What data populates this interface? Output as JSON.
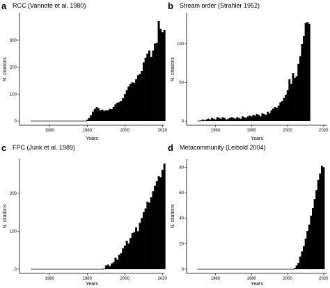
{
  "chart_data": [
    {
      "type": "bar",
      "panel_label": "a",
      "title": "RCC (Vannote et al. 1980)",
      "xlabel": "Years",
      "ylabel": "N. citations",
      "xlim": [
        1944,
        2021
      ],
      "ylim": [
        0,
        390
      ],
      "xticks": [
        1960,
        1980,
        2000,
        2020
      ],
      "yticks": [
        0,
        100,
        200,
        300
      ],
      "start_year": 1980,
      "values": [
        5,
        12,
        22,
        35,
        45,
        52,
        48,
        40,
        42,
        38,
        40,
        40,
        45,
        44,
        52,
        62,
        68,
        70,
        75,
        85,
        100,
        115,
        128,
        138,
        144,
        142,
        155,
        170,
        175,
        186,
        218,
        235,
        250,
        262,
        238,
        262,
        288,
        290,
        372,
        342,
        330,
        338
      ],
      "baseline_from": 1950
    },
    {
      "type": "bar",
      "panel_label": "b",
      "title": "Stream order (Strahler 1952)",
      "xlabel": "Years",
      "ylabel": "N. citations",
      "xlim": [
        1944,
        2022
      ],
      "ylim": [
        0,
        136
      ],
      "xticks": [
        1960,
        1980,
        2000,
        2020
      ],
      "yticks": [
        0,
        50,
        100
      ],
      "start_year": 1952,
      "values": [
        1,
        2,
        1,
        2,
        3,
        2,
        4,
        3,
        2,
        5,
        4,
        3,
        5,
        4,
        2,
        3,
        4,
        5,
        4,
        3,
        5,
        4,
        3,
        6,
        5,
        4,
        6,
        7,
        6,
        8,
        7,
        9,
        8,
        6,
        10,
        9,
        8,
        12,
        10,
        14,
        16,
        18,
        17,
        20,
        24,
        26,
        30,
        34,
        40,
        54,
        48,
        62,
        56,
        58,
        74,
        84,
        100,
        110,
        127,
        128,
        126
      ],
      "baseline_from": 1950
    },
    {
      "type": "bar",
      "panel_label": "c",
      "title": "FPC (Junk et al. 1989)",
      "xlabel": "Years",
      "ylabel": "N. citations",
      "xlim": [
        1944,
        2021
      ],
      "ylim": [
        0,
        282
      ],
      "xticks": [
        1960,
        1980,
        2000,
        2020
      ],
      "yticks": [
        0,
        100,
        200
      ],
      "start_year": 1989,
      "values": [
        2,
        10,
        12,
        8,
        15,
        18,
        30,
        25,
        38,
        42,
        55,
        62,
        75,
        68,
        82,
        95,
        98,
        110,
        100,
        122,
        135,
        150,
        160,
        178,
        175,
        190,
        205,
        220,
        232,
        245,
        242,
        262,
        278
      ],
      "baseline_from": 1950
    },
    {
      "type": "bar",
      "panel_label": "d",
      "title": "Metacommunity (Leibold 2004)",
      "xlabel": "Years",
      "ylabel": "N. citations",
      "xlim": [
        1944,
        2022
      ],
      "ylim": [
        0,
        84
      ],
      "xticks": [
        1960,
        1980,
        2000,
        2020
      ],
      "yticks": [
        0,
        20,
        40,
        60,
        80
      ],
      "start_year": 2004,
      "values": [
        1,
        3,
        5,
        10,
        14,
        18,
        24,
        30,
        35,
        42,
        48,
        55,
        62,
        70,
        75,
        81,
        80
      ],
      "baseline_from": 1950
    }
  ]
}
